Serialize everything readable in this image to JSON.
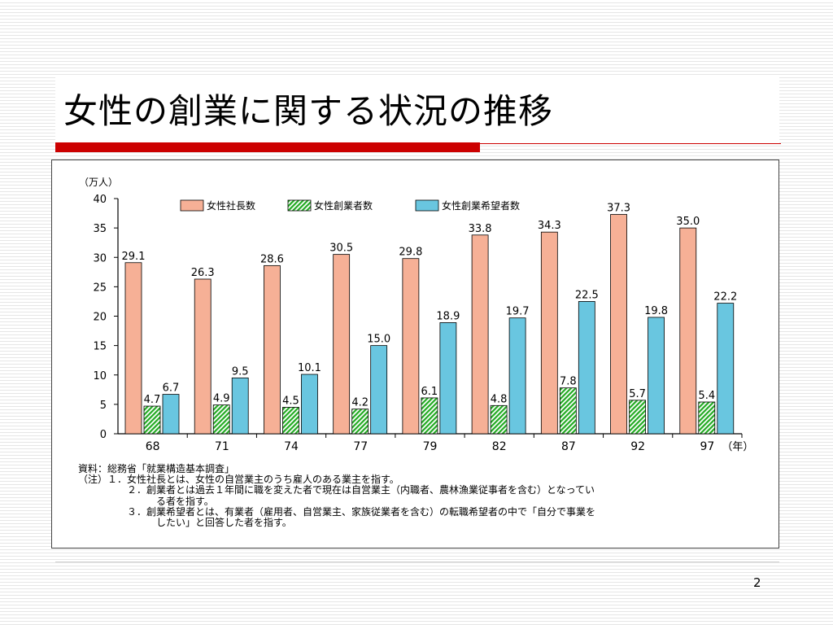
{
  "slide": {
    "title": "女性の創業に関する状況の推移",
    "page_number": "2"
  },
  "colors": {
    "title_bar": "#cc0000",
    "series": [
      "#f6b096",
      "#22aa22",
      "#69c6e0"
    ]
  },
  "chart_data": {
    "type": "bar",
    "y_unit": "（万人）",
    "x_unit": "（年）",
    "categories": [
      "68",
      "71",
      "74",
      "77",
      "79",
      "82",
      "87",
      "92",
      "97"
    ],
    "series": [
      {
        "name": "女性社長数",
        "values": [
          29.1,
          26.3,
          28.6,
          30.5,
          29.8,
          33.8,
          34.3,
          37.3,
          35.0
        ],
        "labels": [
          "29.1",
          "26.3",
          "28.6",
          "30.5",
          "29.8",
          "33.8",
          "34.3",
          "37.3",
          "35.0"
        ]
      },
      {
        "name": "女性創業者数",
        "values": [
          4.7,
          4.9,
          4.5,
          4.2,
          6.1,
          4.8,
          7.8,
          5.7,
          5.4
        ],
        "labels": [
          "4.7",
          "4.9",
          "4.5",
          "4.2",
          "6.1",
          "4.8",
          "7.8",
          "5.7",
          "5.4"
        ]
      },
      {
        "name": "女性創業希望者数",
        "values": [
          6.7,
          9.5,
          10.1,
          15.0,
          18.9,
          19.7,
          22.5,
          19.8,
          22.2
        ],
        "labels": [
          "6.7",
          "9.5",
          "10.1",
          "15.0",
          "18.9",
          "19.7",
          "22.5",
          "19.8",
          "22.2"
        ]
      }
    ],
    "y_ticks": [
      "0",
      "5",
      "10",
      "15",
      "20",
      "25",
      "30",
      "35",
      "40"
    ],
    "ylim": [
      0,
      40
    ],
    "grid": false,
    "legend": "top"
  },
  "notes": {
    "source": "資料：総務省「就業構造基本調査」",
    "note1": "（注）１．女性社長とは、女性の自営業主のうち雇人のある業主を指す。",
    "note2a": "２．創業者とは過去１年間に職を変えた者で現在は自営業主（内職者、農林漁業従事者を含む）となってい",
    "note2b": "る者を指す。",
    "note3a": "３．創業希望者とは、有業者（雇用者、自営業主、家族従業者を含む）の転職希望者の中で「自分で事業を",
    "note3b": "したい」と回答した者を指す。"
  }
}
